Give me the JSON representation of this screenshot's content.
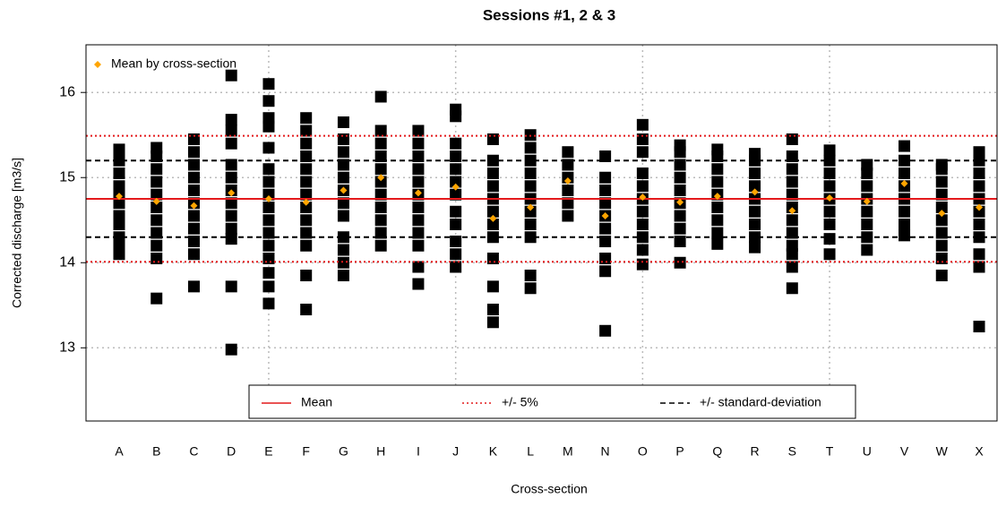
{
  "chart_data": {
    "type": "strip",
    "title": "Sessions #1, 2 & 3",
    "x_label": "Cross-section",
    "y_label": "Corrected discharge [m3/s]",
    "categories": [
      "A",
      "B",
      "C",
      "D",
      "E",
      "F",
      "G",
      "H",
      "I",
      "J",
      "K",
      "L",
      "M",
      "N",
      "O",
      "P",
      "Q",
      "R",
      "S",
      "T",
      "U",
      "V",
      "W",
      "X"
    ],
    "points_color": "#000000",
    "points": [
      [
        14.1,
        14.2,
        14.3,
        14.45,
        14.55,
        14.7,
        14.8,
        14.9,
        15.05,
        15.2,
        15.33
      ],
      [
        13.58,
        14.05,
        14.2,
        14.35,
        14.5,
        14.65,
        14.8,
        14.95,
        15.1,
        15.25,
        15.35
      ],
      [
        13.72,
        14.1,
        14.25,
        14.4,
        14.55,
        14.7,
        14.85,
        15.0,
        15.15,
        15.3,
        15.45
      ],
      [
        12.98,
        13.72,
        14.28,
        14.4,
        14.55,
        14.7,
        14.85,
        15.0,
        15.15,
        15.4,
        15.55,
        15.68,
        16.2
      ],
      [
        13.52,
        13.72,
        13.88,
        14.05,
        14.2,
        14.35,
        14.5,
        14.65,
        14.8,
        14.95,
        15.1,
        15.35,
        15.6,
        15.7,
        15.9,
        16.1
      ],
      [
        13.45,
        13.85,
        14.2,
        14.35,
        14.5,
        14.65,
        14.8,
        14.95,
        15.1,
        15.25,
        15.4,
        15.55,
        15.7
      ],
      [
        13.85,
        14.0,
        14.15,
        14.3,
        14.55,
        14.7,
        14.85,
        15.0,
        15.15,
        15.3,
        15.45,
        15.65
      ],
      [
        14.2,
        14.35,
        14.5,
        14.65,
        14.8,
        14.95,
        15.1,
        15.25,
        15.4,
        15.55,
        15.95
      ],
      [
        13.75,
        13.95,
        14.2,
        14.35,
        14.5,
        14.65,
        14.8,
        14.95,
        15.1,
        15.25,
        15.4,
        15.55
      ],
      [
        13.95,
        14.1,
        14.25,
        14.45,
        14.6,
        14.8,
        14.95,
        15.1,
        15.25,
        15.4,
        15.72,
        15.8
      ],
      [
        13.3,
        13.45,
        13.72,
        14.05,
        14.3,
        14.45,
        14.6,
        14.75,
        14.9,
        15.05,
        15.2,
        15.45
      ],
      [
        13.7,
        13.85,
        14.3,
        14.45,
        14.6,
        14.75,
        14.9,
        15.05,
        15.2,
        15.35,
        15.5
      ],
      [
        14.55,
        14.7,
        14.85,
        15.0,
        15.15,
        15.3
      ],
      [
        13.2,
        13.9,
        14.05,
        14.25,
        14.4,
        14.55,
        14.7,
        14.85,
        15.0,
        15.25
      ],
      [
        13.98,
        14.15,
        14.3,
        14.45,
        14.6,
        14.75,
        14.9,
        15.05,
        15.3,
        15.45,
        15.62
      ],
      [
        14.0,
        14.25,
        14.4,
        14.55,
        14.7,
        14.85,
        15.0,
        15.15,
        15.3,
        15.38
      ],
      [
        14.22,
        14.35,
        14.5,
        14.65,
        14.8,
        14.95,
        15.1,
        15.25,
        15.33
      ],
      [
        14.18,
        14.3,
        14.45,
        14.6,
        14.75,
        14.9,
        15.05,
        15.2,
        15.28
      ],
      [
        13.7,
        13.95,
        14.1,
        14.2,
        14.35,
        14.5,
        14.65,
        14.8,
        14.95,
        15.1,
        15.25,
        15.45
      ],
      [
        14.1,
        14.28,
        14.45,
        14.6,
        14.75,
        14.9,
        15.05,
        15.2,
        15.32
      ],
      [
        14.15,
        14.3,
        14.45,
        14.6,
        14.75,
        14.9,
        15.05,
        15.15
      ],
      [
        14.32,
        14.45,
        14.6,
        14.75,
        14.9,
        15.05,
        15.2,
        15.37
      ],
      [
        13.85,
        14.05,
        14.2,
        14.35,
        14.5,
        14.65,
        14.8,
        14.95,
        15.1,
        15.15
      ],
      [
        13.25,
        13.95,
        14.1,
        14.3,
        14.45,
        14.6,
        14.75,
        14.9,
        15.05,
        15.2,
        15.3
      ]
    ],
    "means": {
      "name": "Mean by cross-section",
      "color": "#ffa500",
      "values": [
        14.78,
        14.72,
        14.67,
        14.82,
        14.75,
        14.71,
        14.85,
        15.0,
        14.82,
        14.89,
        14.52,
        14.65,
        14.96,
        14.55,
        14.77,
        14.71,
        14.78,
        14.83,
        14.61,
        14.76,
        14.72,
        14.93,
        14.58,
        14.65
      ]
    },
    "hlines": [
      {
        "name": "Mean",
        "color": "#e41a1c",
        "dash": "solid",
        "values": [
          14.75
        ]
      },
      {
        "name": "+/- 5%",
        "color": "#e41a1c",
        "dash": "dotted",
        "values": [
          14.01,
          15.49
        ]
      },
      {
        "name": "+/- standard-deviation",
        "color": "#000000",
        "dash": "dashed",
        "values": [
          14.3,
          15.2
        ]
      }
    ],
    "ylim": [
      12.14,
      16.56
    ],
    "yticks": [
      13,
      14,
      15,
      16
    ],
    "grid": true,
    "xgrid_every": 5
  }
}
